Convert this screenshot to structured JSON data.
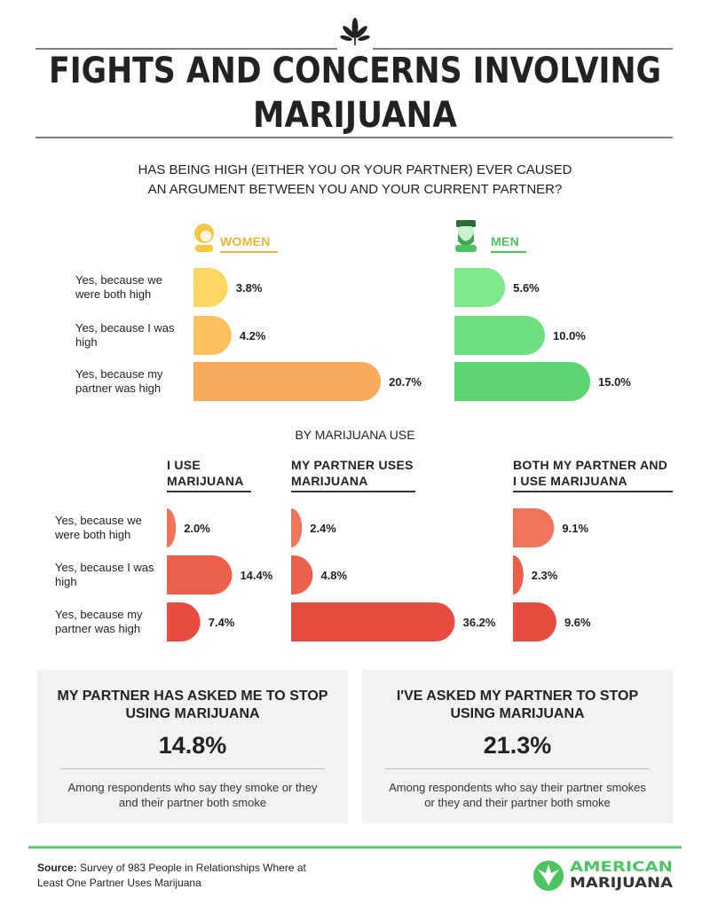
{
  "title": [
    "FIGHTS AND CONCERNS INVOLVING",
    "MARIJUANA"
  ],
  "question": [
    "HAS BEING HIGH (EITHER YOU OR YOUR PARTNER) EVER CAUSED",
    "AN ARGUMENT BETWEEN YOU AND YOUR CURRENT PARTNER?"
  ],
  "section_label": "BY MARIJUANA USE",
  "chart_data": [
    {
      "type": "bar",
      "title": "WOMEN",
      "title_color": "#e8b63c",
      "categories": [
        "Yes, because we were both high",
        "Yes, because I was high",
        "Yes, because my partner was high"
      ],
      "values": [
        3.8,
        4.2,
        20.7
      ],
      "value_labels": [
        "3.8%",
        "4.2%",
        "20.7%"
      ],
      "colors": [
        "#fdd663",
        "#fcc05f",
        "#f9aa5b"
      ]
    },
    {
      "type": "bar",
      "title": "MEN",
      "title_color": "#4cc460",
      "categories": [
        null,
        null,
        null
      ],
      "values": [
        5.6,
        10.0,
        15.0
      ],
      "value_labels": [
        "5.6%",
        "10.0%",
        "15.0%"
      ],
      "colors": [
        "#7ee88c",
        "#6ddf7f",
        "#5ed573"
      ]
    },
    {
      "type": "bar",
      "title": "I USE MARIJUANA",
      "categories": [
        "Yes, because we were both high",
        "Yes, because I was high",
        "Yes, because my partner was high"
      ],
      "values": [
        2.0,
        14.4,
        7.4
      ],
      "value_labels": [
        "2.0%",
        "14.4%",
        "7.4%"
      ],
      "colors": [
        "#f07459",
        "#ec5f4b",
        "#e84b40"
      ]
    },
    {
      "type": "bar",
      "title": "MY PARTNER USES MARIJUANA",
      "categories": [
        null,
        null,
        null
      ],
      "values": [
        2.4,
        4.8,
        36.2
      ],
      "value_labels": [
        "2.4%",
        "4.8%",
        "36.2%"
      ],
      "colors": [
        "#f07459",
        "#ec5f4b",
        "#e84b40"
      ]
    },
    {
      "type": "bar",
      "title": "BOTH MY PARTNER AND I USE MARIJUANA",
      "categories": [
        null,
        null,
        null
      ],
      "values": [
        9.1,
        2.3,
        9.6
      ],
      "value_labels": [
        "9.1%",
        "2.3%",
        "9.6%"
      ],
      "colors": [
        "#f07459",
        "#ec5f4b",
        "#e84b40"
      ]
    }
  ],
  "stats": [
    {
      "title": "MY PARTNER HAS ASKED ME TO STOP USING MARIJUANA",
      "value": "14.8%",
      "note": "Among respondents who say they smoke or they and their partner both smoke"
    },
    {
      "title": "I'VE ASKED MY PARTNER TO STOP USING MARIJUANA",
      "value": "21.3%",
      "note": "Among respondents who say their partner smokes or they and their partner both smoke"
    }
  ],
  "source": {
    "label": "Source:",
    "text": "Survey of 983 People in Relationships Where at Least One Partner Uses Marijuana"
  },
  "logo": [
    "AMERICAN",
    "MARIJUANA"
  ]
}
